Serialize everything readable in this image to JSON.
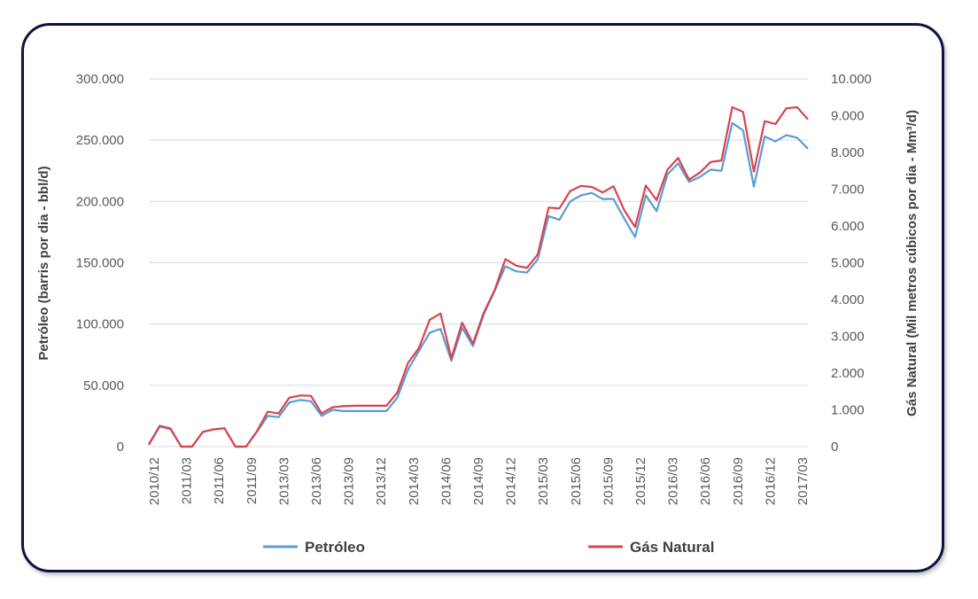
{
  "colors": {
    "petroleo": "#5b9bd5",
    "gas": "#d9434e",
    "grid": "#d9d9d9",
    "frame": "#0e1240"
  },
  "chart_data": {
    "type": "line",
    "xlabel": "",
    "y_left_label": "Petróleo (barris por dia - bbl/d)",
    "y_right_label": "Gás Natural (Mil metros cúbicos por dia - Mm³/d)",
    "ylim_left": [
      0,
      300000
    ],
    "ylim_right": [
      0,
      10000
    ],
    "y_left_ticks": [
      "0",
      "50.000",
      "100.000",
      "150.000",
      "200.000",
      "250.000",
      "300.000"
    ],
    "y_right_ticks": [
      "0",
      "1.000",
      "2.000",
      "3.000",
      "4.000",
      "5.000",
      "6.000",
      "7.000",
      "8.000",
      "9.000",
      "10.000"
    ],
    "x_tick_labels": [
      "2010/12",
      "2011/03",
      "2011/06",
      "2011/09",
      "2013/03",
      "2013/06",
      "2013/09",
      "2013/12",
      "2014/03",
      "2014/06",
      "2014/09",
      "2014/12",
      "2015/03",
      "2015/06",
      "2015/09",
      "2015/12",
      "2016/03",
      "2016/06",
      "2016/09",
      "2016/12",
      "2017/03"
    ],
    "grid": true,
    "legend_position": "bottom",
    "series": [
      {
        "name": "Petróleo",
        "axis": "left",
        "values": [
          2000,
          17000,
          15000,
          0,
          0,
          12000,
          14000,
          15000,
          0,
          0,
          12000,
          25000,
          24000,
          36000,
          38000,
          37000,
          25000,
          30000,
          29000,
          29000,
          29000,
          29000,
          29000,
          40000,
          63000,
          78000,
          93000,
          96000,
          70000,
          97000,
          82000,
          108000,
          127000,
          147000,
          143000,
          142000,
          153000,
          188000,
          185000,
          200000,
          205000,
          207000,
          202000,
          202000,
          186000,
          171000,
          205000,
          192000,
          222000,
          231000,
          216000,
          220000,
          226000,
          225000,
          264000,
          258000,
          212000,
          253000,
          249000,
          254000,
          252000,
          243000
        ]
      },
      {
        "name": "Gás Natural",
        "axis": "right",
        "values": [
          50,
          550,
          480,
          0,
          0,
          400,
          470,
          500,
          0,
          0,
          420,
          950,
          900,
          1330,
          1390,
          1380,
          900,
          1070,
          1100,
          1110,
          1110,
          1110,
          1110,
          1470,
          2280,
          2680,
          3450,
          3620,
          2400,
          3370,
          2800,
          3640,
          4250,
          5100,
          4920,
          4860,
          5230,
          6500,
          6480,
          6950,
          7090,
          7060,
          6910,
          7080,
          6430,
          5970,
          7100,
          6700,
          7530,
          7850,
          7260,
          7450,
          7740,
          7780,
          9230,
          9100,
          7480,
          8850,
          8770,
          9200,
          9230,
          8900
        ]
      }
    ]
  }
}
